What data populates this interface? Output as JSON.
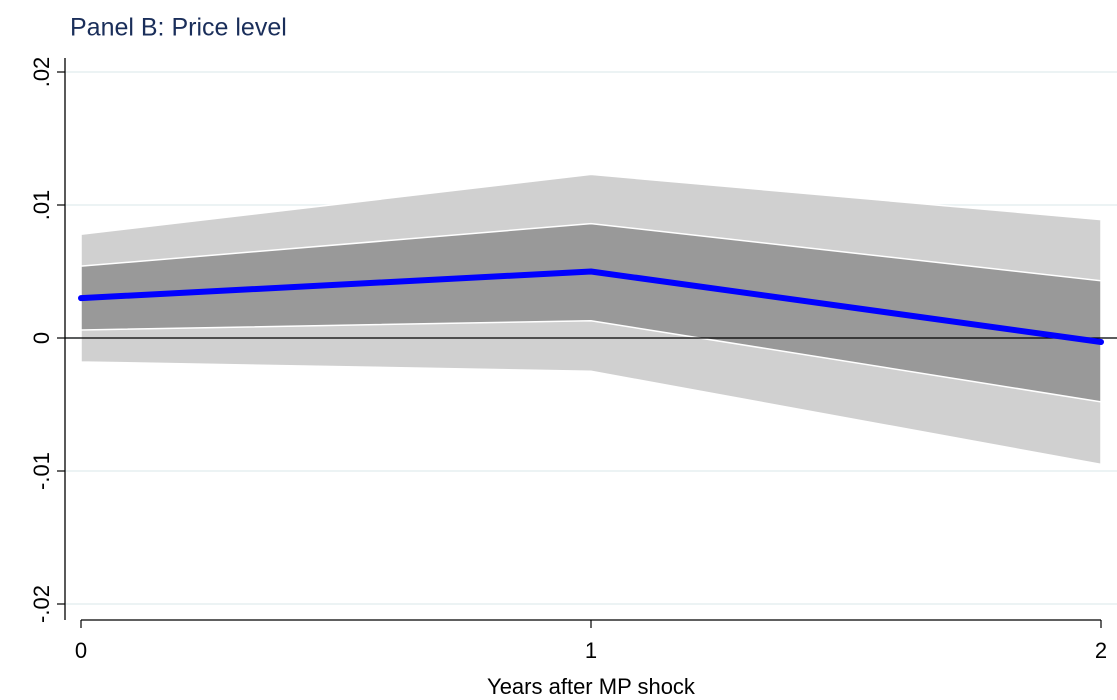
{
  "chart_data": {
    "type": "line",
    "title": "Panel B: Price level",
    "x_label": "Years after MP shock",
    "x": [
      0,
      1,
      2
    ],
    "series": [
      {
        "color": "#0000ff",
        "values": [
          0.003,
          0.005,
          -0.0003
        ]
      }
    ],
    "bands": [
      {
        "color": "#d0d0d0",
        "lower": [
          -0.0018,
          -0.0025,
          -0.0095
        ],
        "upper": [
          0.0078,
          0.0123,
          0.0089
        ]
      },
      {
        "color": "#999999",
        "lower": [
          0.0006,
          0.0013,
          -0.0048
        ],
        "upper": [
          0.0054,
          0.0086,
          0.0043
        ]
      }
    ],
    "reference_line": 0,
    "xlim": [
      0,
      2
    ],
    "xticks": [
      0,
      1,
      2
    ],
    "ylim": [
      -0.02,
      0.02
    ],
    "yticks": [
      {
        "value": -0.02,
        "label": "-.02"
      },
      {
        "value": -0.01,
        "label": "-.01"
      },
      0,
      {
        "value": 0.01,
        "label": ".01"
      },
      {
        "value": 0.02,
        "label": ".02"
      }
    ],
    "grid": true
  }
}
